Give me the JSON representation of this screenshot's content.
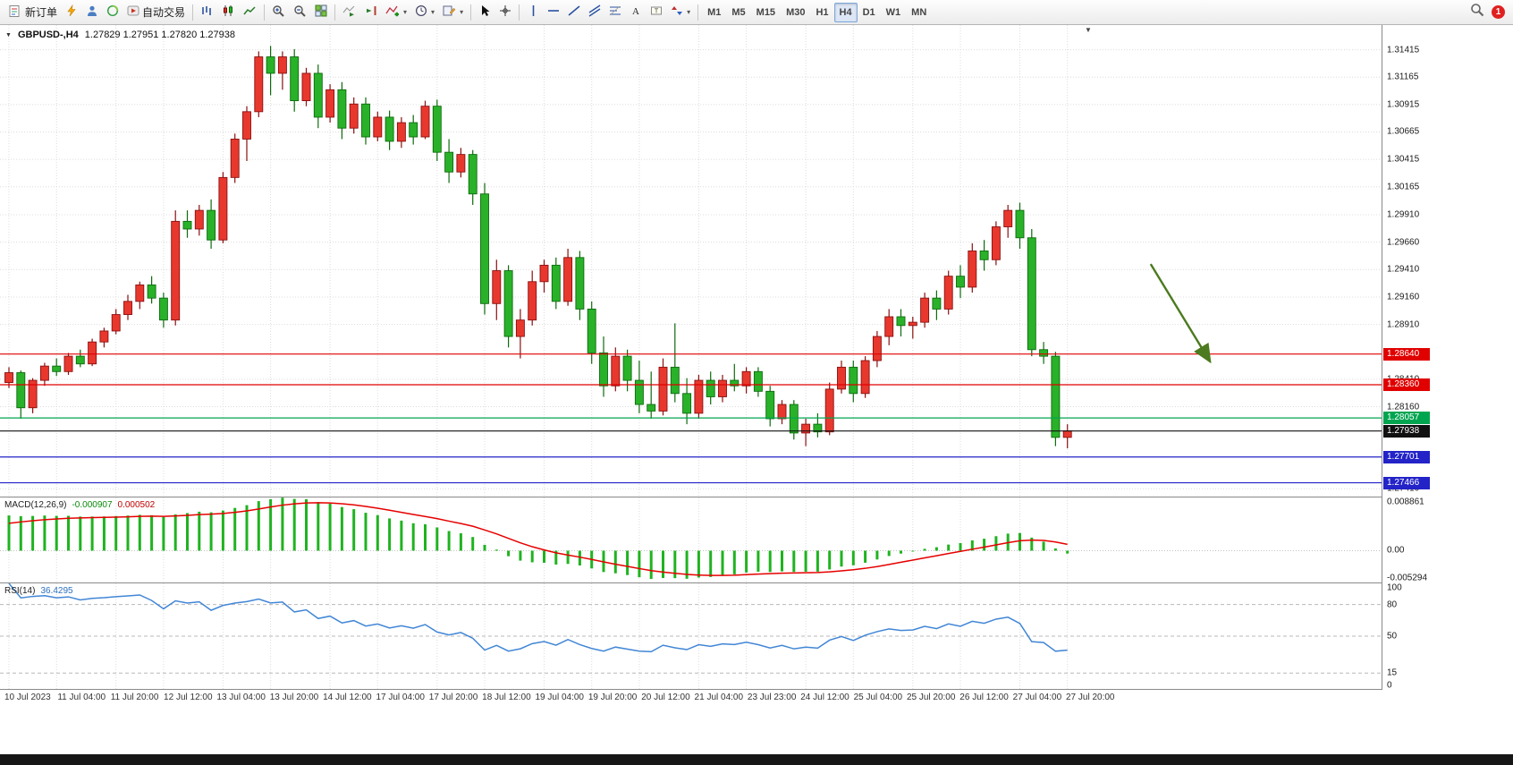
{
  "toolbar": {
    "new_order_label": "新订单",
    "auto_trading_label": "自动交易",
    "timeframes": [
      "M1",
      "M5",
      "M15",
      "M30",
      "H1",
      "H4",
      "D1",
      "W1",
      "MN"
    ],
    "active_timeframe": "H4",
    "notification_badge": "1"
  },
  "symbol_header": {
    "symbol": "GBPUSD-,H4",
    "ohlc": "1.27829 1.27951 1.27820 1.27938"
  },
  "price_axis_labels": [
    "1.31415",
    "1.31165",
    "1.30915",
    "1.30665",
    "1.30415",
    "1.30165",
    "1.29910",
    "1.29660",
    "1.29410",
    "1.29160",
    "1.28910",
    "1.28410",
    "1.28160",
    "1.27410"
  ],
  "levels": [
    {
      "price": 1.2864,
      "label": "1.28640",
      "color": "#e00000"
    },
    {
      "price": 1.2836,
      "label": "1.28360",
      "color": "#e00000"
    },
    {
      "price": 1.28057,
      "label": "1.28057",
      "color": "#00a550"
    },
    {
      "price": 1.27938,
      "label": "1.27938",
      "color": "#111111"
    },
    {
      "price": 1.27701,
      "label": "1.27701",
      "color": "#2323c8"
    },
    {
      "price": 1.27466,
      "label": "1.27466",
      "color": "#2323c8"
    }
  ],
  "time_axis_labels": [
    "10 Jul 2023",
    "11 Jul 04:00",
    "11 Jul 20:00",
    "12 Jul 12:00",
    "13 Jul 04:00",
    "13 Jul 20:00",
    "14 Jul 12:00",
    "17 Jul 04:00",
    "17 Jul 20:00",
    "18 Jul 12:00",
    "19 Jul 04:00",
    "19 Jul 20:00",
    "20 Jul 12:00",
    "21 Jul 04:00",
    "23 Jul 23:00",
    "24 Jul 12:00",
    "25 Jul 04:00",
    "25 Jul 20:00",
    "26 Jul 12:00",
    "27 Jul 04:00",
    "27 Jul 20:00"
  ],
  "indicators": {
    "macd": {
      "label": "MACD(12,26,9)",
      "value_main": "-0.000907",
      "value_signal": "0.000502",
      "params": [
        12,
        26,
        9
      ],
      "axis": [
        "0.008861",
        "0.00",
        "-0.005294"
      ],
      "axis_range": [
        -0.005294,
        0.008861
      ],
      "histogram_color": "#1fb31f",
      "signal_color": "#e60000"
    },
    "rsi": {
      "label": "RSI(14)",
      "value": "36.4295",
      "period": 14,
      "axis": [
        "100",
        "80",
        "50",
        "15",
        "0"
      ],
      "levels": [
        80,
        50,
        15
      ],
      "line_color": "#4186d6"
    }
  },
  "annotation_arrow": {
    "from_bar": 96,
    "from_price": 1.2946,
    "to_bar": 101,
    "to_price": 1.2857,
    "color": "#4c7a1e"
  },
  "chart_data": {
    "type": "candlestick",
    "symbol": "GBPUSD",
    "timeframe": "H4",
    "title": "GBPUSD-,H4",
    "price_range": [
      1.2734,
      1.3164
    ],
    "bull_color": "#e8382e",
    "bull_border": "#8a0f0f",
    "bear_color": "#29b229",
    "bear_border": "#0d6b0d",
    "warmup_closes": [
      1.26,
      1.2615,
      1.264,
      1.2655,
      1.267,
      1.269,
      1.2705,
      1.272,
      1.274,
      1.2755,
      1.277,
      1.2785,
      1.28,
      1.2812,
      1.2822,
      1.2832
    ],
    "candles": [
      [
        1.2838,
        1.2852,
        1.2833,
        1.2847
      ],
      [
        1.2847,
        1.2849,
        1.2805,
        1.2815
      ],
      [
        1.2815,
        1.2842,
        1.281,
        1.284
      ],
      [
        1.284,
        1.2856,
        1.2835,
        1.2853
      ],
      [
        1.2853,
        1.286,
        1.2844,
        1.2848
      ],
      [
        1.2848,
        1.2865,
        1.2845,
        1.2862
      ],
      [
        1.2862,
        1.2868,
        1.2852,
        1.2855
      ],
      [
        1.2855,
        1.2878,
        1.2853,
        1.2875
      ],
      [
        1.2875,
        1.2888,
        1.287,
        1.2885
      ],
      [
        1.2885,
        1.2905,
        1.2882,
        1.29
      ],
      [
        1.29,
        1.2918,
        1.2895,
        1.2912
      ],
      [
        1.2912,
        1.293,
        1.2905,
        1.2927
      ],
      [
        1.2927,
        1.2935,
        1.291,
        1.2915
      ],
      [
        1.2915,
        1.292,
        1.2888,
        1.2895
      ],
      [
        1.2895,
        1.2995,
        1.289,
        1.2985
      ],
      [
        1.2985,
        1.2995,
        1.297,
        1.2978
      ],
      [
        1.2978,
        1.3,
        1.2972,
        1.2995
      ],
      [
        1.2995,
        1.3005,
        1.296,
        1.2968
      ],
      [
        1.2968,
        1.303,
        1.2965,
        1.3025
      ],
      [
        1.3025,
        1.3065,
        1.302,
        1.306
      ],
      [
        1.306,
        1.309,
        1.304,
        1.3085
      ],
      [
        1.3085,
        1.314,
        1.308,
        1.3135
      ],
      [
        1.3135,
        1.3145,
        1.31,
        1.312
      ],
      [
        1.312,
        1.314,
        1.3105,
        1.3135
      ],
      [
        1.3135,
        1.3142,
        1.3085,
        1.3095
      ],
      [
        1.3095,
        1.3125,
        1.309,
        1.312
      ],
      [
        1.312,
        1.3128,
        1.307,
        1.308
      ],
      [
        1.308,
        1.311,
        1.3075,
        1.3105
      ],
      [
        1.3105,
        1.3112,
        1.306,
        1.307
      ],
      [
        1.307,
        1.3098,
        1.3065,
        1.3092
      ],
      [
        1.3092,
        1.3098,
        1.3055,
        1.3062
      ],
      [
        1.3062,
        1.3085,
        1.3058,
        1.308
      ],
      [
        1.308,
        1.3086,
        1.305,
        1.3058
      ],
      [
        1.3058,
        1.308,
        1.3052,
        1.3075
      ],
      [
        1.3075,
        1.3082,
        1.3055,
        1.3062
      ],
      [
        1.3062,
        1.3095,
        1.306,
        1.309
      ],
      [
        1.309,
        1.3096,
        1.304,
        1.3048
      ],
      [
        1.3048,
        1.306,
        1.302,
        1.303
      ],
      [
        1.303,
        1.3052,
        1.3025,
        1.3046
      ],
      [
        1.3046,
        1.305,
        1.3,
        1.301
      ],
      [
        1.301,
        1.302,
        1.29,
        1.291
      ],
      [
        1.291,
        1.295,
        1.2895,
        1.294
      ],
      [
        1.294,
        1.2945,
        1.287,
        1.288
      ],
      [
        1.288,
        1.2905,
        1.286,
        1.2895
      ],
      [
        1.2895,
        1.294,
        1.289,
        1.293
      ],
      [
        1.293,
        1.295,
        1.292,
        1.2945
      ],
      [
        1.2945,
        1.2952,
        1.2905,
        1.2912
      ],
      [
        1.2912,
        1.296,
        1.2908,
        1.2952
      ],
      [
        1.2952,
        1.2958,
        1.2895,
        1.2905
      ],
      [
        1.2905,
        1.2912,
        1.2855,
        1.2865
      ],
      [
        1.2865,
        1.288,
        1.2825,
        1.2835
      ],
      [
        1.2835,
        1.287,
        1.283,
        1.2862
      ],
      [
        1.2862,
        1.2868,
        1.283,
        1.284
      ],
      [
        1.284,
        1.2858,
        1.281,
        1.2818
      ],
      [
        1.2818,
        1.2848,
        1.2805,
        1.2812
      ],
      [
        1.2812,
        1.286,
        1.2808,
        1.2852
      ],
      [
        1.2852,
        1.2892,
        1.282,
        1.2828
      ],
      [
        1.2828,
        1.2842,
        1.28,
        1.281
      ],
      [
        1.281,
        1.2845,
        1.2805,
        1.284
      ],
      [
        1.284,
        1.2848,
        1.2818,
        1.2825
      ],
      [
        1.2825,
        1.2845,
        1.282,
        1.284
      ],
      [
        1.284,
        1.2855,
        1.283,
        1.2835
      ],
      [
        1.2835,
        1.2852,
        1.2828,
        1.2848
      ],
      [
        1.2848,
        1.2852,
        1.2825,
        1.283
      ],
      [
        1.283,
        1.2835,
        1.2798,
        1.2805
      ],
      [
        1.2805,
        1.2822,
        1.28,
        1.2818
      ],
      [
        1.2818,
        1.2822,
        1.2786,
        1.2792
      ],
      [
        1.2792,
        1.2805,
        1.278,
        1.28
      ],
      [
        1.28,
        1.281,
        1.2788,
        1.2793
      ],
      [
        1.2793,
        1.2838,
        1.279,
        1.2832
      ],
      [
        1.2832,
        1.2858,
        1.2828,
        1.2852
      ],
      [
        1.2852,
        1.2858,
        1.282,
        1.2828
      ],
      [
        1.2828,
        1.2862,
        1.2824,
        1.2858
      ],
      [
        1.2858,
        1.2885,
        1.2852,
        1.288
      ],
      [
        1.288,
        1.2905,
        1.2872,
        1.2898
      ],
      [
        1.2898,
        1.2905,
        1.288,
        1.289
      ],
      [
        1.289,
        1.2898,
        1.2878,
        1.2893
      ],
      [
        1.2893,
        1.292,
        1.2888,
        1.2915
      ],
      [
        1.2915,
        1.2922,
        1.2895,
        1.2905
      ],
      [
        1.2905,
        1.294,
        1.29,
        1.2935
      ],
      [
        1.2935,
        1.2945,
        1.2915,
        1.2925
      ],
      [
        1.2925,
        1.2965,
        1.292,
        1.2958
      ],
      [
        1.2958,
        1.2968,
        1.294,
        1.295
      ],
      [
        1.295,
        1.2985,
        1.2945,
        1.298
      ],
      [
        1.298,
        1.3,
        1.297,
        1.2995
      ],
      [
        1.2995,
        1.3002,
        1.296,
        1.297
      ],
      [
        1.297,
        1.2978,
        1.2862,
        1.2868
      ],
      [
        1.2868,
        1.2875,
        1.2855,
        1.2862
      ],
      [
        1.2862,
        1.2866,
        1.278,
        1.2788
      ],
      [
        1.2788,
        1.28,
        1.2778,
        1.2794
      ]
    ]
  }
}
